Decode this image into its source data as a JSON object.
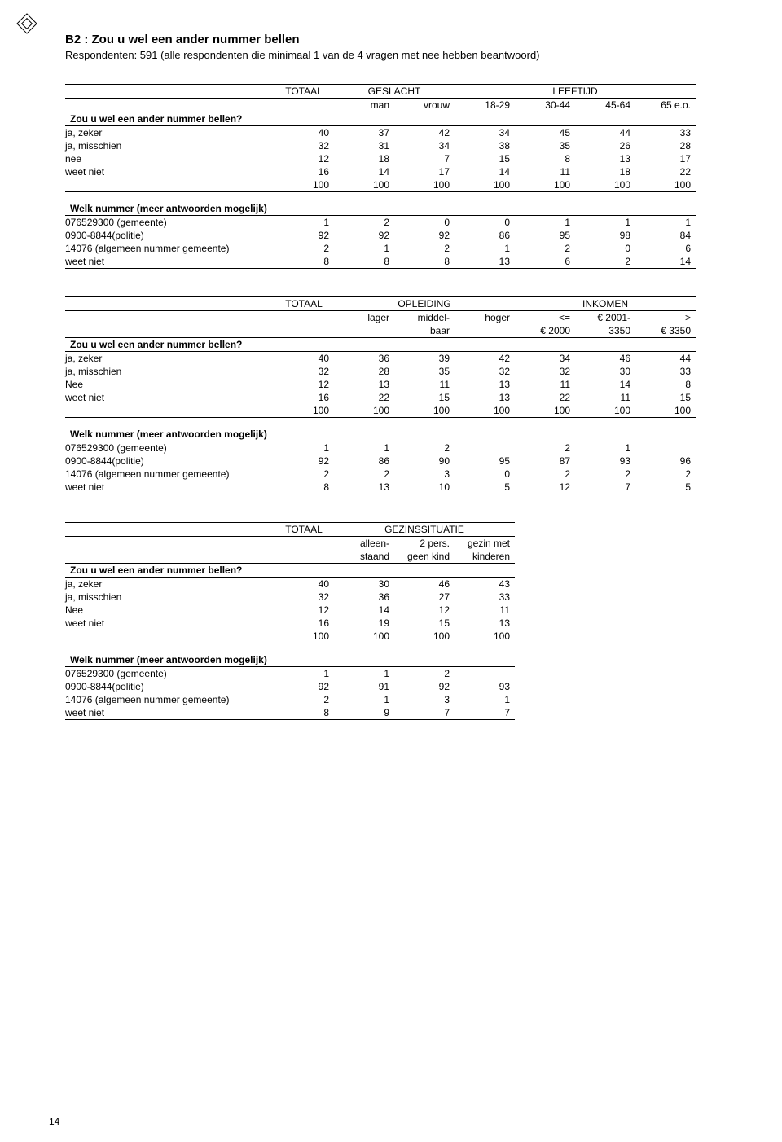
{
  "page_number": "14",
  "title": "B2 : Zou u wel een ander nummer bellen",
  "subtitle": "Respondenten: 591 (alle respondenten die minimaal 1 van de 4 vragen met nee hebben beantwoord)",
  "sections": {
    "q1_title": "Zou u wel een ander nummer bellen?",
    "q2_title": "Welk nummer (meer antwoorden mogelijk)"
  },
  "colsets": {
    "t1": {
      "group_headers": [
        "TOTAAL",
        "GESLACHT",
        "LEEFTIJD"
      ],
      "group_spans": [
        1,
        2,
        4
      ],
      "cols": [
        "",
        "man",
        "vrouw",
        "18-29",
        "30-44",
        "45-64",
        "65 e.o."
      ]
    },
    "t2": {
      "group_headers": [
        "TOTAAL",
        "OPLEIDING",
        "INKOMEN"
      ],
      "group_spans": [
        1,
        3,
        3
      ],
      "cols_line1": [
        "",
        "lager",
        "middel-",
        "hoger",
        "<=",
        "€ 2001-",
        ">"
      ],
      "cols_line2": [
        "",
        "",
        "baar",
        "",
        "€ 2000",
        "3350",
        "€ 3350"
      ]
    },
    "t3": {
      "group_headers": [
        "TOTAAL",
        "GEZINSSITUATIE"
      ],
      "group_spans": [
        1,
        3
      ],
      "cols_line1": [
        "",
        "alleen-",
        "2 pers.",
        "gezin met"
      ],
      "cols_line2": [
        "",
        "staand",
        "geen kind",
        "kinderen"
      ]
    }
  },
  "tables": {
    "t1": {
      "q1": [
        {
          "label": "ja, zeker",
          "v": [
            "40",
            "37",
            "42",
            "34",
            "45",
            "44",
            "33"
          ]
        },
        {
          "label": "ja, misschien",
          "v": [
            "32",
            "31",
            "34",
            "38",
            "35",
            "26",
            "28"
          ]
        },
        {
          "label": "nee",
          "v": [
            "12",
            "18",
            "7",
            "15",
            "8",
            "13",
            "17"
          ]
        },
        {
          "label": "weet niet",
          "v": [
            "16",
            "14",
            "17",
            "14",
            "11",
            "18",
            "22"
          ]
        },
        {
          "label": "",
          "v": [
            "100",
            "100",
            "100",
            "100",
            "100",
            "100",
            "100"
          ],
          "border": true
        }
      ],
      "q2": [
        {
          "label": "076529300 (gemeente)",
          "v": [
            "1",
            "2",
            "0",
            "0",
            "1",
            "1",
            "1"
          ]
        },
        {
          "label": "0900-8844(politie)",
          "v": [
            "92",
            "92",
            "92",
            "86",
            "95",
            "98",
            "84"
          ]
        },
        {
          "label": "14076 (algemeen nummer gemeente)",
          "v": [
            "2",
            "1",
            "2",
            "1",
            "2",
            "0",
            "6"
          ]
        },
        {
          "label": "weet niet",
          "v": [
            "8",
            "8",
            "8",
            "13",
            "6",
            "2",
            "14"
          ],
          "border": true
        }
      ]
    },
    "t2": {
      "q1": [
        {
          "label": "ja, zeker",
          "v": [
            "40",
            "36",
            "39",
            "42",
            "34",
            "46",
            "44"
          ]
        },
        {
          "label": "ja, misschien",
          "v": [
            "32",
            "28",
            "35",
            "32",
            "32",
            "30",
            "33"
          ]
        },
        {
          "label": "Nee",
          "v": [
            "12",
            "13",
            "11",
            "13",
            "11",
            "14",
            "8"
          ]
        },
        {
          "label": "weet niet",
          "v": [
            "16",
            "22",
            "15",
            "13",
            "22",
            "11",
            "15"
          ]
        },
        {
          "label": "",
          "v": [
            "100",
            "100",
            "100",
            "100",
            "100",
            "100",
            "100"
          ],
          "border": true
        }
      ],
      "q2": [
        {
          "label": "076529300 (gemeente)",
          "v": [
            "1",
            "1",
            "2",
            "",
            "2",
            "1",
            ""
          ]
        },
        {
          "label": "0900-8844(politie)",
          "v": [
            "92",
            "86",
            "90",
            "95",
            "87",
            "93",
            "96"
          ]
        },
        {
          "label": "14076 (algemeen nummer gemeente)",
          "v": [
            "2",
            "2",
            "3",
            "0",
            "2",
            "2",
            "2"
          ]
        },
        {
          "label": "weet niet",
          "v": [
            "8",
            "13",
            "10",
            "5",
            "12",
            "7",
            "5"
          ],
          "border": true
        }
      ]
    },
    "t3": {
      "q1": [
        {
          "label": "ja, zeker",
          "v": [
            "40",
            "30",
            "46",
            "43"
          ]
        },
        {
          "label": "ja, misschien",
          "v": [
            "32",
            "36",
            "27",
            "33"
          ]
        },
        {
          "label": "Nee",
          "v": [
            "12",
            "14",
            "12",
            "11"
          ]
        },
        {
          "label": "weet niet",
          "v": [
            "16",
            "19",
            "15",
            "13"
          ]
        },
        {
          "label": "",
          "v": [
            "100",
            "100",
            "100",
            "100"
          ],
          "border": true
        }
      ],
      "q2": [
        {
          "label": "076529300 (gemeente)",
          "v": [
            "1",
            "1",
            "2",
            ""
          ]
        },
        {
          "label": "0900-8844(politie)",
          "v": [
            "92",
            "91",
            "92",
            "93"
          ]
        },
        {
          "label": "14076 (algemeen nummer gemeente)",
          "v": [
            "2",
            "1",
            "3",
            "1"
          ]
        },
        {
          "label": "weet niet",
          "v": [
            "8",
            "9",
            "7",
            "7"
          ],
          "border": true
        }
      ]
    }
  }
}
